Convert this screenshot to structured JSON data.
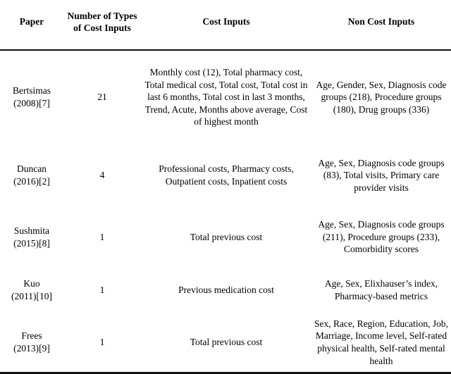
{
  "table": {
    "columns": [
      "Paper",
      "Number of Types of Cost Inputs",
      "Cost Inputs",
      "Non Cost Inputs"
    ],
    "rows": [
      {
        "paper": "Bertsimas",
        "ref": "(2008)[7]",
        "num_cost_types": "21",
        "cost_inputs": "Monthly cost (12), Total pharmacy cost, Total medical cost, Total cost, Total cost in last 6 months, Total cost in last 3 months, Trend, Acute, Months above average, Cost of highest month",
        "non_cost_inputs": "Age, Gender, Sex, Diagnosis code groups (218), Procedure groups (180), Drug groups (336)"
      },
      {
        "paper": "Duncan",
        "ref": "(2016)[2]",
        "num_cost_types": "4",
        "cost_inputs": "Professional costs, Pharmacy costs, Outpatient costs, Inpatient costs",
        "non_cost_inputs": "Age, Sex, Diagnosis code groups (83), Total visits, Primary care provider visits"
      },
      {
        "paper": "Sushmita",
        "ref": "(2015)[8]",
        "num_cost_types": "1",
        "cost_inputs": "Total previous cost",
        "non_cost_inputs": "Age, Sex, Diagnosis code groups (211), Procedure groups (233), Comorbidity scores"
      },
      {
        "paper": "Kuo",
        "ref": "(2011)[10]",
        "num_cost_types": "1",
        "cost_inputs": "Previous medication cost",
        "non_cost_inputs": "Age, Sex, Elixhauser’s index, Pharmacy-based metrics"
      },
      {
        "paper": "Frees",
        "ref": "(2013)[9]",
        "num_cost_types": "1",
        "cost_inputs": "Total previous cost",
        "non_cost_inputs": "Sex, Race, Region, Education, Job, Marriage, Income level, Self-rated physical health, Self-rated mental health"
      }
    ]
  }
}
